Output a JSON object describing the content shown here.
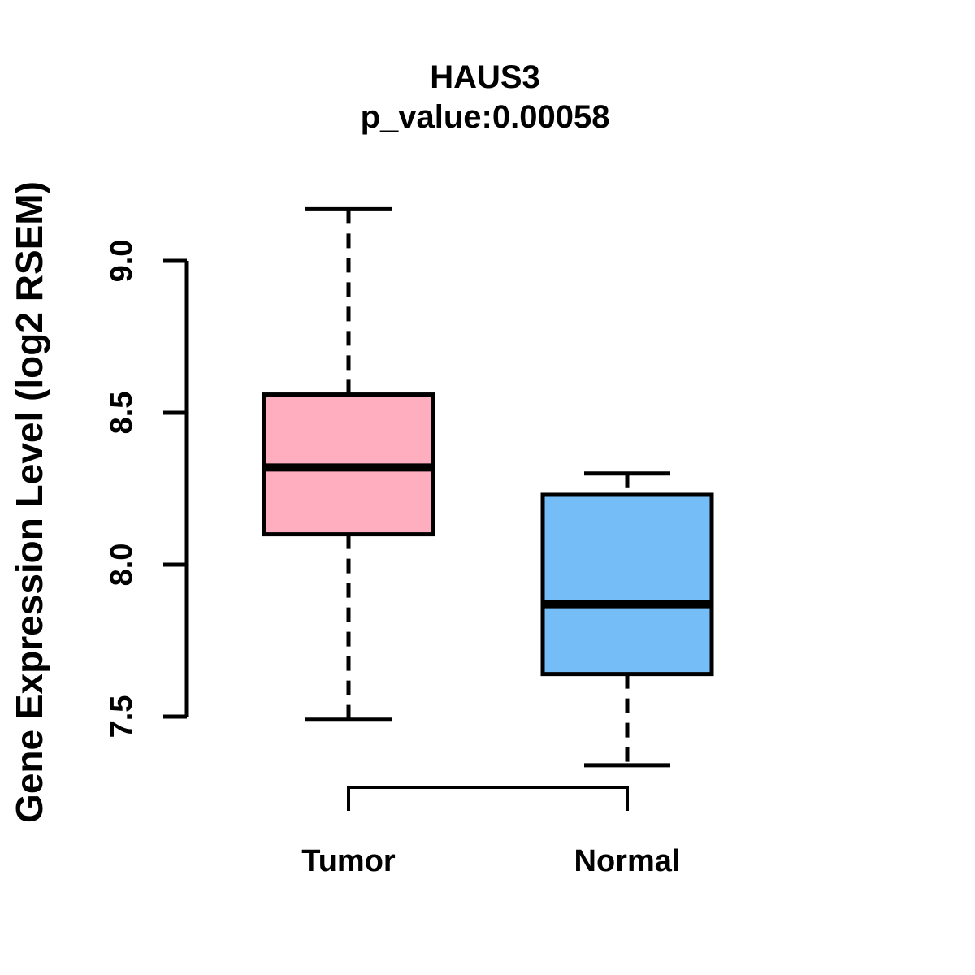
{
  "chart": {
    "title": "HAUS3",
    "subtitle": "p_value:0.00058",
    "gene": "HAUS3",
    "p_value": "0.00058",
    "ylabel": "Gene Expression Level (log2 RSEM)"
  },
  "chart_data": {
    "type": "boxplot",
    "title": "HAUS3",
    "subtitle": "p_value:0.00058",
    "ylabel": "Gene Expression Level (log2 RSEM)",
    "categories": [
      "Tumor",
      "Normal"
    ],
    "yticks": [
      7.5,
      8.0,
      8.5,
      9.0
    ],
    "ylim": [
      7.25,
      9.25
    ],
    "grid": false,
    "legend": "none",
    "series": [
      {
        "name": "Tumor",
        "color": "#FFAEC0",
        "whisker_low": 7.49,
        "q1": 8.1,
        "median": 8.32,
        "q3": 8.56,
        "whisker_high": 9.17
      },
      {
        "name": "Normal",
        "color": "#74BDF7",
        "whisker_low": 7.34,
        "q1": 7.64,
        "median": 7.87,
        "q3": 8.23,
        "whisker_high": 8.3
      }
    ],
    "colors": {
      "box_border": "#000000",
      "median_line": "#000000",
      "whisker": "#000000",
      "axis": "#000000"
    }
  }
}
